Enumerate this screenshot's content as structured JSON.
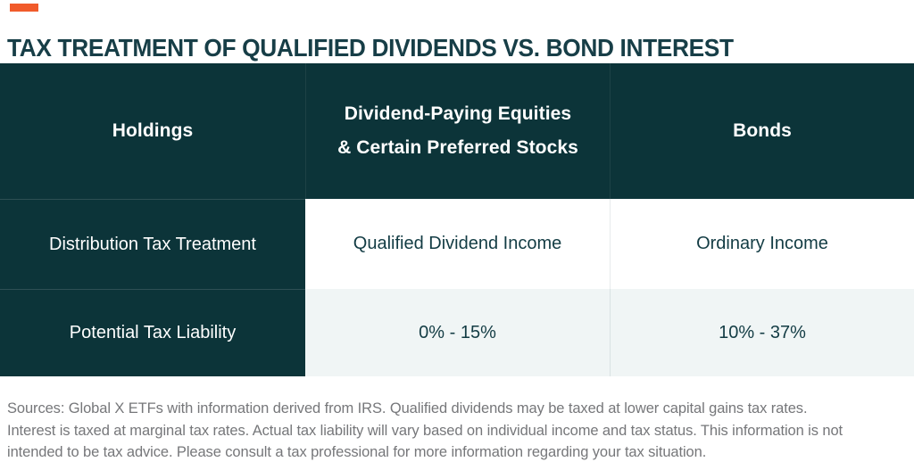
{
  "title": "TAX TREATMENT OF QUALIFIED DIVIDENDS VS. BOND INTEREST",
  "table": {
    "header": {
      "col1": "Holdings",
      "col2_line1": "Dividend-Paying Equities",
      "col2_line2": "& Certain Preferred Stocks",
      "col3": "Bonds"
    },
    "rows": [
      {
        "label": "Distribution Tax Treatment",
        "equities": "Qualified Dividend Income",
        "bonds": "Ordinary Income"
      },
      {
        "label": "Potential Tax Liability",
        "equities": "0% - 15%",
        "bonds": "10% - 37%"
      }
    ]
  },
  "footnote": {
    "lines": [
      "Sources: Global X ETFs with information derived from IRS. Qualified dividends may be taxed at lower capital gains tax rates.",
      "Interest is taxed at marginal tax rates. Actual tax liability will vary based on individual income and tax status. This information is not",
      "intended to be tax advice. Please consult a tax professional for more information regarding your tax situation."
    ]
  },
  "colors": {
    "accent_orange": "#F15B2B",
    "title_teal": "#173E47",
    "dark_teal": "#0C3439",
    "row_alt": "#F0F5F5",
    "cell_text": "#133C44",
    "footnote_grey": "#76777A"
  },
  "chart_data": {
    "type": "table",
    "title": "TAX TREATMENT OF QUALIFIED DIVIDENDS VS. BOND INTEREST",
    "columns": [
      "Holdings",
      "Dividend-Paying Equities & Certain Preferred Stocks",
      "Bonds"
    ],
    "rows": [
      [
        "Distribution Tax Treatment",
        "Qualified Dividend Income",
        "Ordinary Income"
      ],
      [
        "Potential Tax Liability",
        "0% - 15%",
        "10% - 37%"
      ]
    ],
    "source_note": "Sources: Global X ETFs with information derived from IRS. Qualified dividends may be taxed at lower capital gains tax rates. Interest is taxed at marginal tax rates. Actual tax liability will vary based on individual income and tax status. This information is not intended to be tax advice. Please consult a tax professional for more information regarding your tax situation."
  }
}
